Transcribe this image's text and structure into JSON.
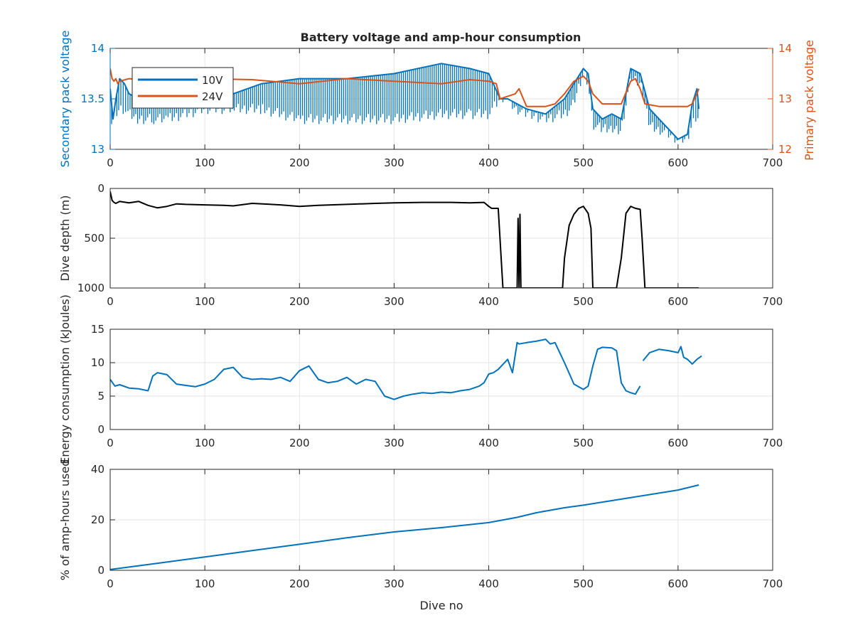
{
  "figure": {
    "title": "Battery voltage and amp-hour consumption"
  },
  "colors": {
    "blue": "#0072BD",
    "orange": "#D95319",
    "black": "#000000",
    "grid": "#e6e6e6",
    "axis": "#262626"
  },
  "chart_data": [
    {
      "type": "line",
      "title": "Battery voltage and amp-hour consumption",
      "xlabel": "",
      "ylabel": "Secondary pack voltage",
      "ylabel_right": "Primary pack voltage",
      "xlim": [
        0,
        700
      ],
      "ylim": [
        13,
        14
      ],
      "ylim_right": [
        12,
        14
      ],
      "xticks": [
        0,
        100,
        200,
        300,
        400,
        500,
        600,
        700
      ],
      "yticks": [
        13,
        13.5,
        14
      ],
      "yticks_right": [
        12,
        13,
        14
      ],
      "grid": true,
      "legend": "top-left",
      "series": [
        {
          "name": "10V",
          "axis": "left",
          "color": "#0072BD",
          "x": [
            0,
            3,
            6,
            10,
            15,
            20,
            30,
            45,
            60,
            80,
            100,
            130,
            160,
            200,
            250,
            300,
            350,
            380,
            400,
            412,
            420,
            430,
            440,
            460,
            480,
            490,
            500,
            505,
            510,
            520,
            530,
            540,
            550,
            560,
            570,
            580,
            600,
            610,
            615,
            620,
            622
          ],
          "y": [
            13.6,
            13.3,
            13.5,
            13.7,
            13.65,
            13.55,
            13.5,
            13.45,
            13.5,
            13.55,
            13.6,
            13.55,
            13.65,
            13.7,
            13.7,
            13.75,
            13.85,
            13.8,
            13.75,
            13.5,
            13.5,
            13.45,
            13.4,
            13.35,
            13.5,
            13.65,
            13.8,
            13.75,
            13.4,
            13.3,
            13.35,
            13.3,
            13.8,
            13.75,
            13.4,
            13.3,
            13.1,
            13.15,
            13.45,
            13.6,
            13.4
          ],
          "dip_from": [
            13.2,
            13.3,
            13.3,
            13.35,
            13.35,
            13.3,
            13.25,
            13.25,
            13.25,
            13.3,
            13.35,
            13.35,
            13.35,
            13.25,
            13.25,
            13.25,
            13.3,
            13.3,
            13.3,
            13.45,
            13.45,
            13.35,
            13.3,
            13.25,
            13.3,
            13.4,
            13.7,
            13.6,
            13.2,
            13.15,
            13.15,
            13.15,
            13.65,
            13.6,
            13.2,
            13.15,
            13.05,
            13.05,
            13.2,
            13.3,
            13.25
          ]
        },
        {
          "name": "24V",
          "axis": "right",
          "color": "#D95319",
          "x": [
            0,
            2,
            4,
            6,
            8,
            10,
            20,
            50,
            100,
            150,
            200,
            250,
            300,
            350,
            380,
            400,
            408,
            412,
            420,
            428,
            432,
            440,
            460,
            470,
            480,
            490,
            500,
            505,
            510,
            520,
            530,
            540,
            550,
            555,
            560,
            565,
            580,
            600,
            610,
            615,
            620,
            622
          ],
          "y": [
            13.6,
            13.4,
            13.35,
            13.4,
            13.3,
            13.35,
            13.4,
            13.35,
            13.4,
            13.38,
            13.3,
            13.4,
            13.35,
            13.3,
            13.38,
            13.35,
            13.3,
            13.0,
            13.05,
            13.1,
            13.2,
            12.85,
            12.85,
            12.9,
            13.1,
            13.35,
            13.45,
            13.35,
            13.1,
            12.9,
            12.9,
            12.9,
            13.35,
            13.4,
            13.2,
            12.9,
            12.85,
            12.85,
            12.85,
            12.9,
            13.1,
            13.2
          ]
        }
      ]
    },
    {
      "type": "line",
      "xlabel": "",
      "ylabel": "Dive depth (m)",
      "xlim": [
        0,
        700
      ],
      "ylim": [
        0,
        1000
      ],
      "y_reversed": true,
      "xticks": [
        0,
        100,
        200,
        300,
        400,
        500,
        600,
        700
      ],
      "yticks": [
        0,
        500,
        1000
      ],
      "grid": true,
      "series": [
        {
          "color": "#000000",
          "x": [
            0,
            2,
            4,
            6,
            10,
            20,
            30,
            40,
            50,
            60,
            70,
            80,
            100,
            120,
            130,
            150,
            180,
            200,
            220,
            250,
            280,
            300,
            330,
            360,
            380,
            395,
            400,
            403,
            410,
            415,
            420,
            425,
            430,
            431,
            432,
            433,
            434,
            435,
            440,
            450,
            460,
            470,
            478,
            480,
            485,
            490,
            495,
            500,
            505,
            508,
            510,
            520,
            530,
            535,
            540,
            545,
            550,
            555,
            560,
            562,
            565,
            580,
            600,
            610,
            620,
            622
          ],
          "y": [
            30,
            120,
            140,
            150,
            130,
            145,
            130,
            170,
            195,
            180,
            155,
            160,
            165,
            170,
            175,
            150,
            165,
            180,
            170,
            160,
            150,
            145,
            140,
            140,
            145,
            140,
            180,
            200,
            200,
            1000,
            1000,
            1000,
            1000,
            300,
            1000,
            260,
            1000,
            1000,
            1000,
            1000,
            1000,
            1000,
            1000,
            700,
            370,
            260,
            200,
            180,
            250,
            400,
            1000,
            1000,
            1000,
            1000,
            700,
            250,
            180,
            200,
            210,
            500,
            1000,
            1000,
            1000,
            1000,
            1000,
            1000
          ]
        }
      ]
    },
    {
      "type": "line",
      "xlabel": "",
      "ylabel": "Energy consumption (kJoules)",
      "xlim": [
        0,
        700
      ],
      "ylim": [
        0,
        15
      ],
      "xticks": [
        0,
        100,
        200,
        300,
        400,
        500,
        600,
        700
      ],
      "yticks": [
        0,
        5,
        10,
        15
      ],
      "grid": true,
      "series": [
        {
          "color": "#0072BD",
          "x": [
            0,
            5,
            10,
            20,
            30,
            40,
            45,
            50,
            60,
            70,
            80,
            90,
            100,
            110,
            120,
            130,
            140,
            150,
            160,
            170,
            180,
            190,
            200,
            210,
            220,
            230,
            240,
            250,
            260,
            270,
            280,
            290,
            300,
            310,
            320,
            330,
            340,
            350,
            360,
            370,
            380,
            390,
            395,
            400,
            405,
            410,
            420,
            425,
            430,
            432,
            440,
            450,
            460,
            465,
            470,
            480,
            490,
            500,
            505,
            510,
            515,
            520,
            530,
            535,
            540,
            545,
            550,
            555,
            560
          ],
          "y": [
            7.5,
            6.5,
            6.7,
            6.2,
            6.1,
            5.8,
            8.0,
            8.5,
            8.2,
            6.8,
            6.6,
            6.4,
            6.8,
            7.5,
            9.0,
            9.3,
            7.8,
            7.5,
            7.6,
            7.5,
            7.8,
            7.2,
            8.8,
            9.5,
            7.5,
            7.0,
            7.2,
            7.8,
            6.8,
            7.5,
            7.2,
            5.0,
            4.5,
            5.0,
            5.3,
            5.5,
            5.4,
            5.6,
            5.5,
            5.8,
            6.0,
            6.5,
            7.0,
            8.3,
            8.5,
            9.0,
            10.5,
            8.5,
            13.0,
            12.8,
            13.0,
            13.2,
            13.5,
            12.8,
            13.0,
            10.0,
            6.8,
            6.0,
            6.5,
            9.5,
            12.0,
            12.3,
            12.2,
            11.8,
            7.0,
            5.8,
            5.5,
            5.3,
            6.5
          ]
        },
        {
          "color": "#0072BD",
          "x": [
            563,
            570,
            580,
            590,
            600,
            603,
            606,
            610,
            615,
            620,
            625
          ],
          "y": [
            10.3,
            11.5,
            12.0,
            11.8,
            11.5,
            12.4,
            10.8,
            10.5,
            9.8,
            10.5,
            11.0
          ]
        }
      ]
    },
    {
      "type": "line",
      "xlabel": "Dive no",
      "ylabel": "% of amp-hours used",
      "xlim": [
        0,
        700
      ],
      "ylim": [
        0,
        40
      ],
      "xticks": [
        0,
        100,
        200,
        300,
        400,
        500,
        600,
        700
      ],
      "yticks": [
        0,
        20,
        40
      ],
      "grid": true,
      "series": [
        {
          "color": "#0072BD",
          "x": [
            0,
            50,
            100,
            150,
            200,
            250,
            300,
            350,
            400,
            430,
            450,
            480,
            500,
            550,
            600,
            622
          ],
          "y": [
            0.3,
            2.8,
            5.3,
            7.8,
            10.3,
            12.9,
            15.2,
            16.9,
            18.9,
            21.0,
            22.8,
            24.8,
            25.8,
            28.8,
            31.8,
            33.8
          ]
        }
      ]
    }
  ]
}
